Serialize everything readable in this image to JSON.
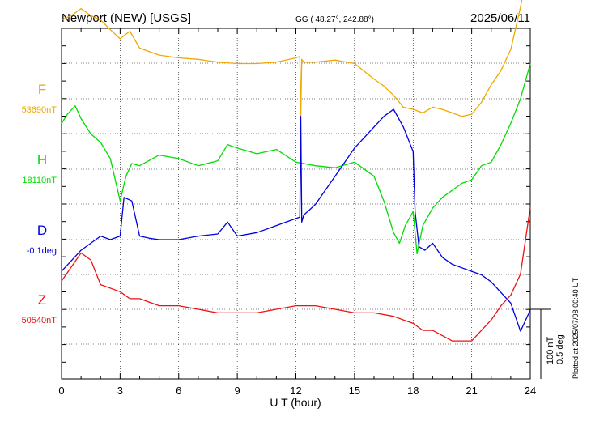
{
  "header": {
    "station": "Newport (NEW)  [USGS]",
    "coords": "GG ( 48.27°, 242.88°)",
    "date": "2025/06/11"
  },
  "scale": {
    "nt": "100 nT",
    "deg": "0.5 deg"
  },
  "plotted": "Plotted at 2025/07/08 00:40 UT",
  "chart_data": {
    "type": "line",
    "xlabel": "U T (hour)",
    "xlim": [
      0,
      24
    ],
    "xticks": [
      0,
      3,
      6,
      9,
      12,
      15,
      18,
      21,
      24
    ],
    "grid": true,
    "series": [
      {
        "name": "F",
        "baseline_label": "53690nT",
        "color": "#f0a800",
        "x": [
          0,
          0.5,
          1,
          1.5,
          2,
          2.5,
          3,
          3.5,
          4,
          5,
          6,
          7,
          8,
          9,
          10,
          11,
          12,
          12.2,
          12.25,
          12.3,
          12.4,
          13,
          14,
          15,
          16,
          16.5,
          17,
          17.5,
          18,
          18.5,
          19,
          19.5,
          20,
          20.5,
          21,
          21.5,
          22,
          22.5,
          23,
          23.5,
          24
        ],
        "values": [
          1.12,
          1.18,
          1.28,
          1.18,
          1.12,
          0.98,
          0.85,
          0.96,
          0.72,
          0.62,
          0.58,
          0.56,
          0.52,
          0.5,
          0.5,
          0.52,
          0.58,
          0.6,
          -0.25,
          0.56,
          0.52,
          0.52,
          0.55,
          0.5,
          0.28,
          0.18,
          0.05,
          -0.12,
          -0.15,
          -0.2,
          -0.12,
          -0.15,
          -0.2,
          -0.25,
          -0.22,
          -0.05,
          0.2,
          0.4,
          0.7,
          1.3,
          2.05
        ]
      },
      {
        "name": "H",
        "baseline_label": "18110nT",
        "color": "#00dd00",
        "x": [
          0,
          0.3,
          0.7,
          1,
          1.5,
          2,
          2.5,
          3,
          3.3,
          3.6,
          4,
          5,
          6,
          7,
          8,
          8.5,
          9,
          10,
          11,
          12,
          13,
          14,
          15,
          16,
          16.5,
          17,
          17.3,
          17.6,
          18,
          18.2,
          18.5,
          19,
          19.5,
          20,
          20.5,
          21,
          21.5,
          22,
          22.5,
          23,
          23.5,
          24
        ],
        "values": [
          0.65,
          0.78,
          0.9,
          0.72,
          0.5,
          0.38,
          0.15,
          -0.45,
          -0.1,
          0.08,
          0.05,
          0.2,
          0.15,
          0.05,
          0.12,
          0.35,
          0.3,
          0.22,
          0.28,
          0.1,
          0.05,
          0.02,
          0.1,
          -0.1,
          -0.45,
          -0.9,
          -1.05,
          -0.8,
          -0.6,
          -1.2,
          -0.8,
          -0.55,
          -0.4,
          -0.3,
          -0.2,
          -0.15,
          0.05,
          0.1,
          0.35,
          0.65,
          1.0,
          1.5
        ]
      },
      {
        "name": "D",
        "baseline_label": "-0.1deg",
        "color": "#0000dd",
        "x": [
          0,
          0.5,
          1,
          1.5,
          2,
          2.5,
          3,
          3.2,
          3.6,
          4,
          4.5,
          5,
          6,
          7,
          8,
          8.5,
          9,
          10,
          11,
          12,
          12.2,
          12.25,
          12.3,
          12.4,
          13,
          14,
          15,
          16,
          16.5,
          17,
          17.5,
          18,
          18.1,
          18.3,
          18.6,
          19,
          19.5,
          20,
          20.5,
          21,
          21.5,
          22,
          22.5,
          23,
          23.5,
          24
        ],
        "values": [
          -0.45,
          -0.3,
          -0.15,
          -0.05,
          0.05,
          0,
          0.05,
          0.6,
          0.55,
          0.05,
          0.02,
          0,
          0,
          0.05,
          0.08,
          0.25,
          0.05,
          0.1,
          0.2,
          0.3,
          0.32,
          1.75,
          0.25,
          0.35,
          0.5,
          0.9,
          1.3,
          1.6,
          1.75,
          1.85,
          1.6,
          1.25,
          0.4,
          -0.1,
          -0.15,
          -0.05,
          -0.25,
          -0.35,
          -0.4,
          -0.45,
          -0.5,
          -0.6,
          -0.75,
          -0.9,
          -1.3,
          -1.0
        ]
      },
      {
        "name": "Z",
        "baseline_label": "50540nT",
        "color": "#ee1111",
        "x": [
          0,
          0.5,
          1,
          1.5,
          2,
          3,
          3.5,
          4,
          5,
          6,
          7,
          8,
          9,
          10,
          11,
          12,
          13,
          14,
          15,
          16,
          17,
          17.5,
          18,
          18.5,
          19,
          20,
          21,
          21.5,
          22,
          22.5,
          23,
          23.5,
          24
        ],
        "values": [
          0.4,
          0.6,
          0.8,
          0.7,
          0.35,
          0.25,
          0.15,
          0.15,
          0.05,
          0.05,
          0,
          -0.05,
          -0.05,
          -0.05,
          0,
          0.05,
          0.05,
          0,
          -0.05,
          -0.05,
          -0.1,
          -0.15,
          -0.2,
          -0.3,
          -0.3,
          -0.45,
          -0.45,
          -0.3,
          -0.15,
          0.05,
          0.2,
          0.5,
          1.45
        ]
      }
    ]
  }
}
